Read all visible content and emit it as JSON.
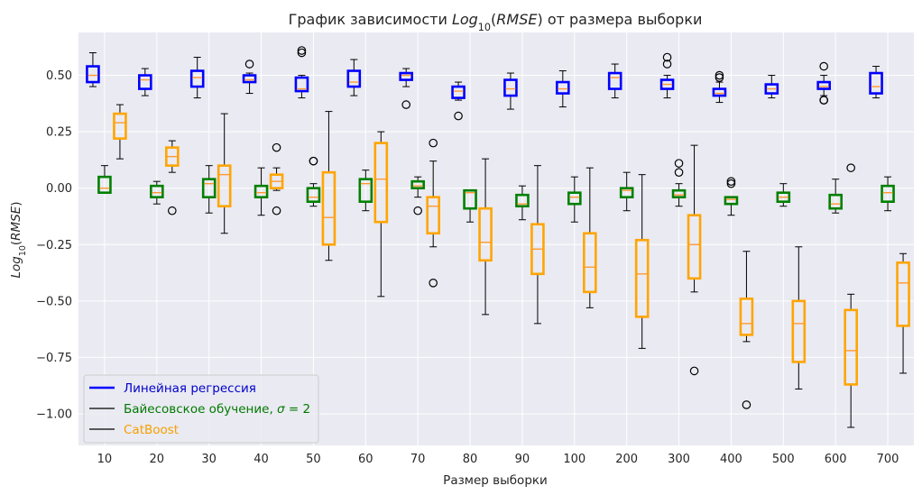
{
  "chart_data": {
    "type": "box",
    "title": "График зависимости $Log_{10}(RMSE)$ от размера выборки",
    "xlabel": "Размер выборки",
    "ylabel": "$Log_{10}(RMSE)$",
    "ylim": [
      -1.14,
      0.69
    ],
    "yticks": [
      "0.50",
      "0.25",
      "0.00",
      "−0.25",
      "−0.50",
      "−0.75",
      "−1.00"
    ],
    "ytick_values": [
      0.5,
      0.25,
      0.0,
      -0.25,
      -0.5,
      -0.75,
      -1.0
    ],
    "grid": true,
    "legend_position": "lower-left",
    "categories": [
      "10",
      "20",
      "30",
      "40",
      "50",
      "60",
      "70",
      "80",
      "90",
      "100",
      "200",
      "300",
      "400",
      "500",
      "600",
      "700"
    ],
    "series": [
      {
        "name": "Линейная регрессия",
        "color": "#0000ff",
        "legend_text_color": "#0000cc",
        "boxes": [
          {
            "q1": 0.47,
            "med": 0.5,
            "q3": 0.54,
            "wlo": 0.45,
            "whi": 0.6,
            "fliers": []
          },
          {
            "q1": 0.44,
            "med": 0.48,
            "q3": 0.5,
            "wlo": 0.41,
            "whi": 0.53,
            "fliers": []
          },
          {
            "q1": 0.45,
            "med": 0.49,
            "q3": 0.52,
            "wlo": 0.4,
            "whi": 0.58,
            "fliers": []
          },
          {
            "q1": 0.47,
            "med": 0.48,
            "q3": 0.5,
            "wlo": 0.42,
            "whi": 0.51,
            "fliers": [
              0.55
            ]
          },
          {
            "q1": 0.43,
            "med": 0.44,
            "q3": 0.49,
            "wlo": 0.4,
            "whi": 0.5,
            "fliers": [
              0.6,
              0.61
            ]
          },
          {
            "q1": 0.45,
            "med": 0.47,
            "q3": 0.52,
            "wlo": 0.41,
            "whi": 0.57,
            "fliers": []
          },
          {
            "q1": 0.48,
            "med": 0.5,
            "q3": 0.51,
            "wlo": 0.45,
            "whi": 0.53,
            "fliers": [
              0.37
            ]
          },
          {
            "q1": 0.4,
            "med": 0.43,
            "q3": 0.45,
            "wlo": 0.39,
            "whi": 0.47,
            "fliers": [
              0.32
            ]
          },
          {
            "q1": 0.41,
            "med": 0.44,
            "q3": 0.48,
            "wlo": 0.35,
            "whi": 0.51,
            "fliers": []
          },
          {
            "q1": 0.42,
            "med": 0.44,
            "q3": 0.47,
            "wlo": 0.36,
            "whi": 0.52,
            "fliers": []
          },
          {
            "q1": 0.44,
            "med": 0.49,
            "q3": 0.51,
            "wlo": 0.4,
            "whi": 0.55,
            "fliers": []
          },
          {
            "q1": 0.44,
            "med": 0.46,
            "q3": 0.48,
            "wlo": 0.4,
            "whi": 0.5,
            "fliers": [
              0.55,
              0.58
            ]
          },
          {
            "q1": 0.41,
            "med": 0.42,
            "q3": 0.44,
            "wlo": 0.38,
            "whi": 0.47,
            "fliers": [
              0.49,
              0.5
            ]
          },
          {
            "q1": 0.42,
            "med": 0.44,
            "q3": 0.46,
            "wlo": 0.4,
            "whi": 0.5,
            "fliers": []
          },
          {
            "q1": 0.44,
            "med": 0.45,
            "q3": 0.47,
            "wlo": 0.41,
            "whi": 0.5,
            "fliers": [
              0.39,
              0.39,
              0.54
            ]
          },
          {
            "q1": 0.42,
            "med": 0.45,
            "q3": 0.51,
            "wlo": 0.4,
            "whi": 0.54,
            "fliers": []
          }
        ]
      },
      {
        "name": "Байесовское обучение, $\\sigma = 2$",
        "color": "#008000",
        "legend_text_color": "#007a00",
        "boxes": [
          {
            "q1": -0.02,
            "med": 0.0,
            "q3": 0.05,
            "wlo": -0.02,
            "whi": 0.1,
            "fliers": []
          },
          {
            "q1": -0.04,
            "med": -0.02,
            "q3": 0.01,
            "wlo": -0.07,
            "whi": 0.03,
            "fliers": []
          },
          {
            "q1": -0.04,
            "med": 0.02,
            "q3": 0.04,
            "wlo": -0.11,
            "whi": 0.1,
            "fliers": []
          },
          {
            "q1": -0.04,
            "med": -0.02,
            "q3": 0.01,
            "wlo": -0.12,
            "whi": 0.09,
            "fliers": []
          },
          {
            "q1": -0.06,
            "med": -0.04,
            "q3": 0.0,
            "wlo": -0.08,
            "whi": 0.02,
            "fliers": [
              0.12,
              0.12
            ]
          },
          {
            "q1": -0.06,
            "med": 0.02,
            "q3": 0.04,
            "wlo": -0.1,
            "whi": 0.08,
            "fliers": []
          },
          {
            "q1": 0.0,
            "med": 0.01,
            "q3": 0.03,
            "wlo": -0.04,
            "whi": 0.05,
            "fliers": [
              -0.1
            ]
          },
          {
            "q1": -0.09,
            "med": -0.02,
            "q3": -0.01,
            "wlo": -0.15,
            "whi": -0.01,
            "fliers": []
          },
          {
            "q1": -0.08,
            "med": -0.07,
            "q3": -0.03,
            "wlo": -0.14,
            "whi": 0.01,
            "fliers": []
          },
          {
            "q1": -0.07,
            "med": -0.04,
            "q3": -0.02,
            "wlo": -0.15,
            "whi": 0.05,
            "fliers": []
          },
          {
            "q1": -0.04,
            "med": -0.01,
            "q3": 0.0,
            "wlo": -0.1,
            "whi": 0.07,
            "fliers": []
          },
          {
            "q1": -0.04,
            "med": -0.03,
            "q3": -0.01,
            "wlo": -0.08,
            "whi": 0.02,
            "fliers": [
              0.07,
              0.11
            ]
          },
          {
            "q1": -0.07,
            "med": -0.05,
            "q3": -0.04,
            "wlo": -0.12,
            "whi": -0.04,
            "fliers": [
              0.02,
              0.03
            ]
          },
          {
            "q1": -0.06,
            "med": -0.04,
            "q3": -0.02,
            "wlo": -0.08,
            "whi": 0.02,
            "fliers": []
          },
          {
            "q1": -0.09,
            "med": -0.07,
            "q3": -0.03,
            "wlo": -0.11,
            "whi": 0.04,
            "fliers": []
          },
          {
            "q1": -0.06,
            "med": -0.02,
            "q3": 0.01,
            "wlo": -0.1,
            "whi": 0.05,
            "fliers": []
          }
        ]
      },
      {
        "name": "CatBoost",
        "color": "#ffa500",
        "legend_text_color": "#f5a000",
        "boxes": [
          {
            "q1": 0.22,
            "med": 0.29,
            "q3": 0.33,
            "wlo": 0.13,
            "whi": 0.37,
            "fliers": []
          },
          {
            "q1": 0.1,
            "med": 0.14,
            "q3": 0.18,
            "wlo": 0.07,
            "whi": 0.21,
            "fliers": [
              -0.1
            ]
          },
          {
            "q1": -0.08,
            "med": 0.06,
            "q3": 0.1,
            "wlo": -0.2,
            "whi": 0.33,
            "fliers": []
          },
          {
            "q1": 0.0,
            "med": 0.03,
            "q3": 0.06,
            "wlo": -0.01,
            "whi": 0.09,
            "fliers": [
              0.18,
              -0.1
            ]
          },
          {
            "q1": -0.25,
            "med": -0.13,
            "q3": 0.07,
            "wlo": -0.32,
            "whi": 0.34,
            "fliers": []
          },
          {
            "q1": -0.15,
            "med": 0.04,
            "q3": 0.2,
            "wlo": -0.48,
            "whi": 0.25,
            "fliers": []
          },
          {
            "q1": -0.2,
            "med": -0.08,
            "q3": -0.04,
            "wlo": -0.26,
            "whi": 0.12,
            "fliers": [
              0.2,
              -0.42
            ]
          },
          {
            "q1": -0.32,
            "med": -0.24,
            "q3": -0.09,
            "wlo": -0.56,
            "whi": 0.13,
            "fliers": []
          },
          {
            "q1": -0.38,
            "med": -0.27,
            "q3": -0.16,
            "wlo": -0.6,
            "whi": 0.1,
            "fliers": []
          },
          {
            "q1": -0.46,
            "med": -0.35,
            "q3": -0.2,
            "wlo": -0.53,
            "whi": 0.09,
            "fliers": []
          },
          {
            "q1": -0.57,
            "med": -0.38,
            "q3": -0.23,
            "wlo": -0.71,
            "whi": 0.06,
            "fliers": []
          },
          {
            "q1": -0.4,
            "med": -0.25,
            "q3": -0.12,
            "wlo": -0.46,
            "whi": 0.19,
            "fliers": [
              -0.81
            ]
          },
          {
            "q1": -0.65,
            "med": -0.6,
            "q3": -0.49,
            "wlo": -0.68,
            "whi": -0.28,
            "fliers": [
              -0.96
            ]
          },
          {
            "q1": -0.77,
            "med": -0.6,
            "q3": -0.5,
            "wlo": -0.89,
            "whi": -0.26,
            "fliers": []
          },
          {
            "q1": -0.87,
            "med": -0.72,
            "q3": -0.54,
            "wlo": -1.06,
            "whi": -0.47,
            "fliers": [
              0.09
            ]
          },
          {
            "q1": -0.61,
            "med": -0.42,
            "q3": -0.33,
            "wlo": -0.82,
            "whi": -0.29,
            "fliers": []
          }
        ]
      }
    ]
  }
}
